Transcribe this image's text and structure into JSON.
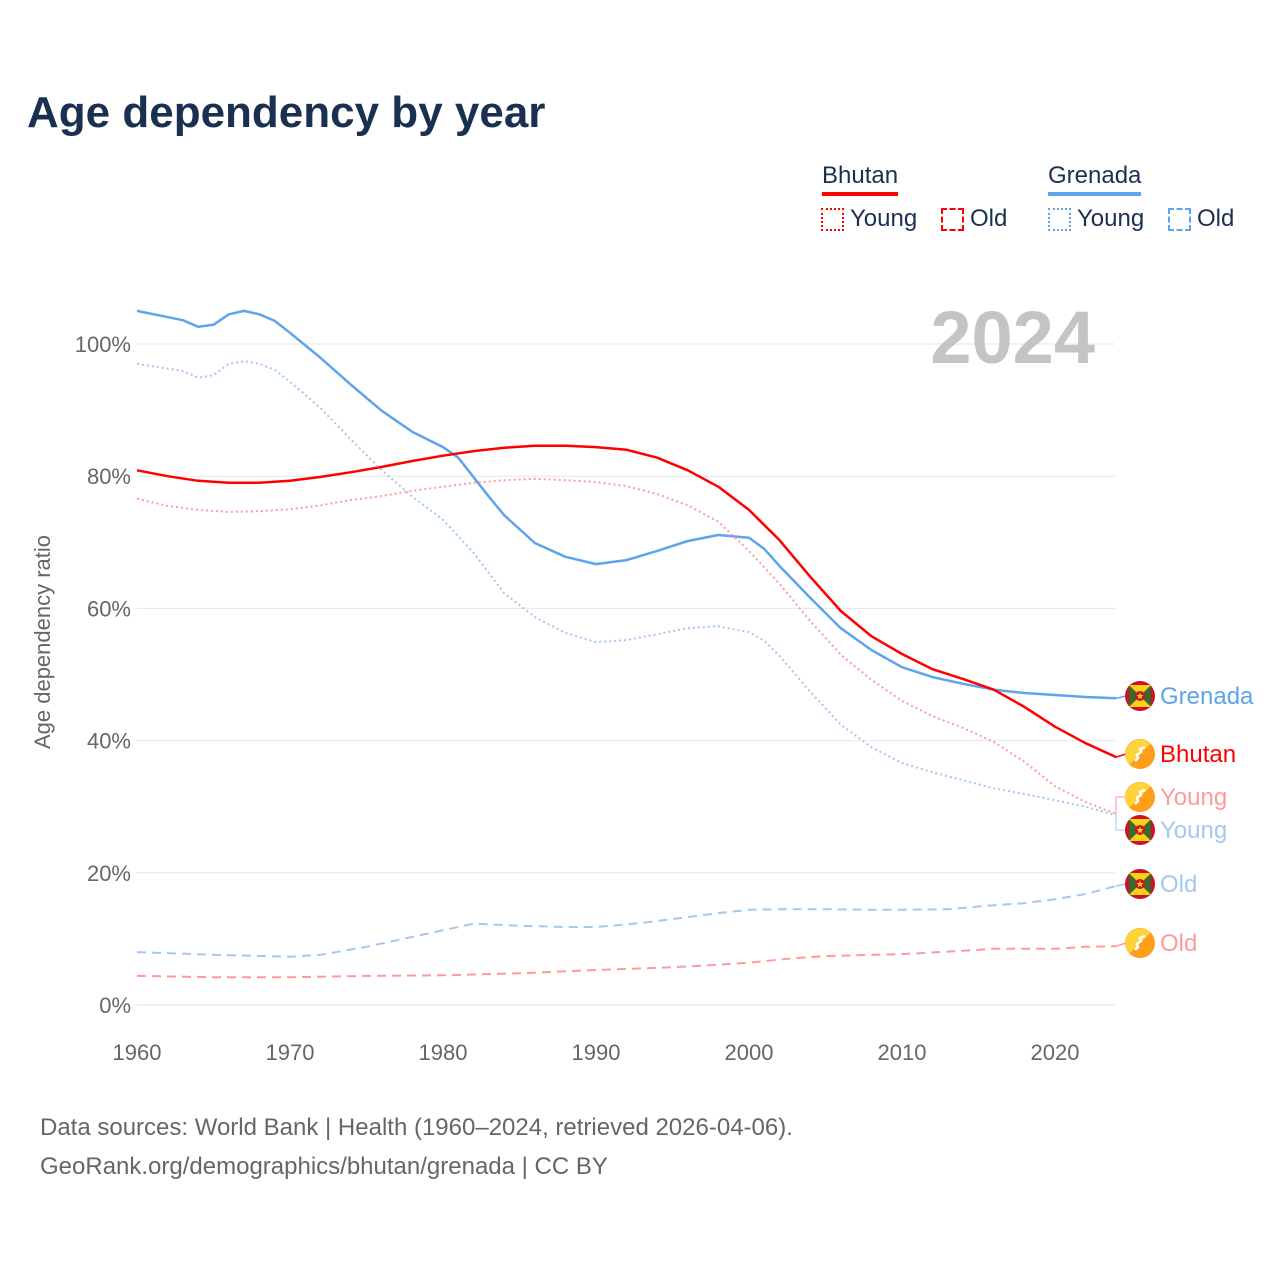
{
  "title": "Age dependency by year",
  "legend": {
    "countries": [
      {
        "name": "Bhutan",
        "color": "#ff0000",
        "light": "#ff9a9a",
        "items": [
          "Young",
          "Old"
        ]
      },
      {
        "name": "Grenada",
        "color": "#5ea4ec",
        "light": "#a4c8f0",
        "items": [
          "Young",
          "Old"
        ]
      }
    ]
  },
  "footer": {
    "line1": "Data sources: World Bank | Health (1960–2024, retrieved 2026-04-06).",
    "line2": "GeoRank.org/demographics/bhutan/grenada | CC BY"
  },
  "chart_data": {
    "type": "line",
    "title": "Age dependency by year",
    "year_label": "2024",
    "xlabel": "",
    "ylabel": "Age dependency ratio",
    "xlim": [
      1960,
      2024
    ],
    "ylim": [
      0,
      110
    ],
    "x_ticks": [
      "1960",
      "1970",
      "1980",
      "1990",
      "2000",
      "2010",
      "2020"
    ],
    "y_ticks": [
      "0%",
      "20%",
      "40%",
      "60%",
      "80%",
      "100%"
    ],
    "grid": true,
    "end_labels": [
      "Grenada",
      "Bhutan",
      "Young",
      "Young",
      "Old",
      "Old"
    ],
    "series": [
      {
        "name": "Grenada",
        "country": "Grenada",
        "kind": "total",
        "color": "#5ea4ec",
        "x": [
          1960,
          1963,
          1964,
          1965,
          1966,
          1967,
          1968,
          1969,
          1970,
          1972,
          1974,
          1976,
          1978,
          1980,
          1981,
          1983,
          1984,
          1986,
          1988,
          1990,
          1992,
          1994,
          1996,
          1998,
          2000,
          2001,
          2002,
          2004,
          2006,
          2008,
          2010,
          2012,
          2014,
          2016,
          2018,
          2020,
          2022,
          2024
        ],
        "y": [
          105.0,
          103.6,
          102.6,
          102.9,
          104.5,
          105.0,
          104.5,
          103.5,
          101.7,
          97.9,
          93.8,
          89.9,
          86.7,
          84.4,
          82.8,
          76.9,
          74.1,
          69.9,
          67.8,
          66.7,
          67.3,
          68.7,
          70.2,
          71.1,
          70.7,
          69.0,
          66.4,
          61.6,
          57.0,
          53.7,
          51.1,
          49.6,
          48.6,
          47.7,
          47.2,
          46.9,
          46.6,
          46.4
        ]
      },
      {
        "name": "Bhutan",
        "country": "Bhutan",
        "kind": "total",
        "color": "#ff0000",
        "x": [
          1960,
          1962,
          1964,
          1966,
          1968,
          1970,
          1972,
          1974,
          1976,
          1978,
          1980,
          1982,
          1984,
          1986,
          1988,
          1990,
          1992,
          1994,
          1996,
          1998,
          2000,
          2002,
          2004,
          2006,
          2008,
          2010,
          2012,
          2014,
          2016,
          2018,
          2020,
          2022,
          2024
        ],
        "y": [
          80.9,
          80.0,
          79.3,
          79.0,
          79.0,
          79.3,
          79.9,
          80.6,
          81.4,
          82.3,
          83.1,
          83.8,
          84.3,
          84.6,
          84.6,
          84.4,
          84.0,
          82.8,
          80.9,
          78.4,
          74.9,
          70.3,
          64.8,
          59.6,
          55.8,
          53.1,
          50.8,
          49.3,
          47.7,
          45.1,
          42.1,
          39.6,
          37.5
        ]
      },
      {
        "name": "Young",
        "country": "Bhutan",
        "kind": "young",
        "color": "#ff9a9a",
        "x": [
          1960,
          1962,
          1964,
          1966,
          1968,
          1970,
          1972,
          1974,
          1976,
          1978,
          1980,
          1982,
          1984,
          1986,
          1988,
          1990,
          1992,
          1994,
          1996,
          1998,
          2000,
          2002,
          2004,
          2006,
          2008,
          2010,
          2012,
          2014,
          2016,
          2018,
          2020,
          2022,
          2024
        ],
        "y": [
          76.6,
          75.5,
          74.9,
          74.6,
          74.7,
          75.0,
          75.6,
          76.4,
          77.0,
          77.8,
          78.4,
          79.0,
          79.4,
          79.6,
          79.4,
          79.1,
          78.5,
          77.3,
          75.6,
          73.1,
          68.7,
          63.7,
          58.1,
          53.0,
          49.2,
          46.0,
          43.7,
          41.9,
          39.8,
          36.8,
          33.1,
          30.7,
          28.9
        ]
      },
      {
        "name": "Young",
        "country": "Grenada",
        "kind": "young",
        "color": "#a4c8f0",
        "x": [
          1960,
          1963,
          1964,
          1965,
          1966,
          1967,
          1968,
          1969,
          1970,
          1972,
          1974,
          1976,
          1978,
          1980,
          1982,
          1984,
          1986,
          1988,
          1990,
          1992,
          1994,
          1996,
          1998,
          2000,
          2001,
          2002,
          2004,
          2006,
          2008,
          2010,
          2012,
          2014,
          2016,
          2018,
          2020,
          2022,
          2024
        ],
        "y": [
          97.0,
          95.9,
          94.9,
          95.3,
          97.0,
          97.4,
          97.0,
          96.1,
          94.3,
          90.3,
          85.5,
          80.9,
          76.9,
          73.4,
          68.4,
          62.3,
          58.7,
          56.3,
          54.9,
          55.2,
          56.1,
          57.0,
          57.3,
          56.4,
          55.1,
          52.8,
          47.4,
          42.4,
          39.0,
          36.6,
          35.2,
          34.0,
          32.8,
          31.9,
          31.0,
          30.0,
          28.7
        ]
      },
      {
        "name": "Old",
        "country": "Grenada",
        "kind": "old",
        "color": "#a4c8f0",
        "x": [
          1960,
          1965,
          1970,
          1972,
          1975,
          1978,
          1980,
          1982,
          1985,
          1988,
          1990,
          1993,
          1996,
          1998,
          2000,
          2002,
          2005,
          2008,
          2010,
          2013,
          2016,
          2018,
          2020,
          2022,
          2024
        ],
        "y": [
          8.0,
          7.6,
          7.3,
          7.6,
          8.8,
          10.3,
          11.3,
          12.3,
          12.0,
          11.8,
          11.8,
          12.4,
          13.3,
          13.9,
          14.4,
          14.5,
          14.5,
          14.4,
          14.4,
          14.5,
          15.1,
          15.4,
          16.0,
          16.8,
          18.0
        ]
      },
      {
        "name": "Old",
        "country": "Bhutan",
        "kind": "old",
        "color": "#ff9a9a",
        "x": [
          1960,
          1965,
          1970,
          1975,
          1980,
          1985,
          1990,
          1995,
          1998,
          2000,
          2003,
          2005,
          2010,
          2014,
          2016,
          2018,
          2020,
          2022,
          2024
        ],
        "y": [
          4.4,
          4.2,
          4.2,
          4.4,
          4.5,
          4.8,
          5.3,
          5.7,
          6.1,
          6.4,
          7.1,
          7.4,
          7.7,
          8.2,
          8.5,
          8.5,
          8.5,
          8.8,
          8.9
        ]
      }
    ]
  }
}
